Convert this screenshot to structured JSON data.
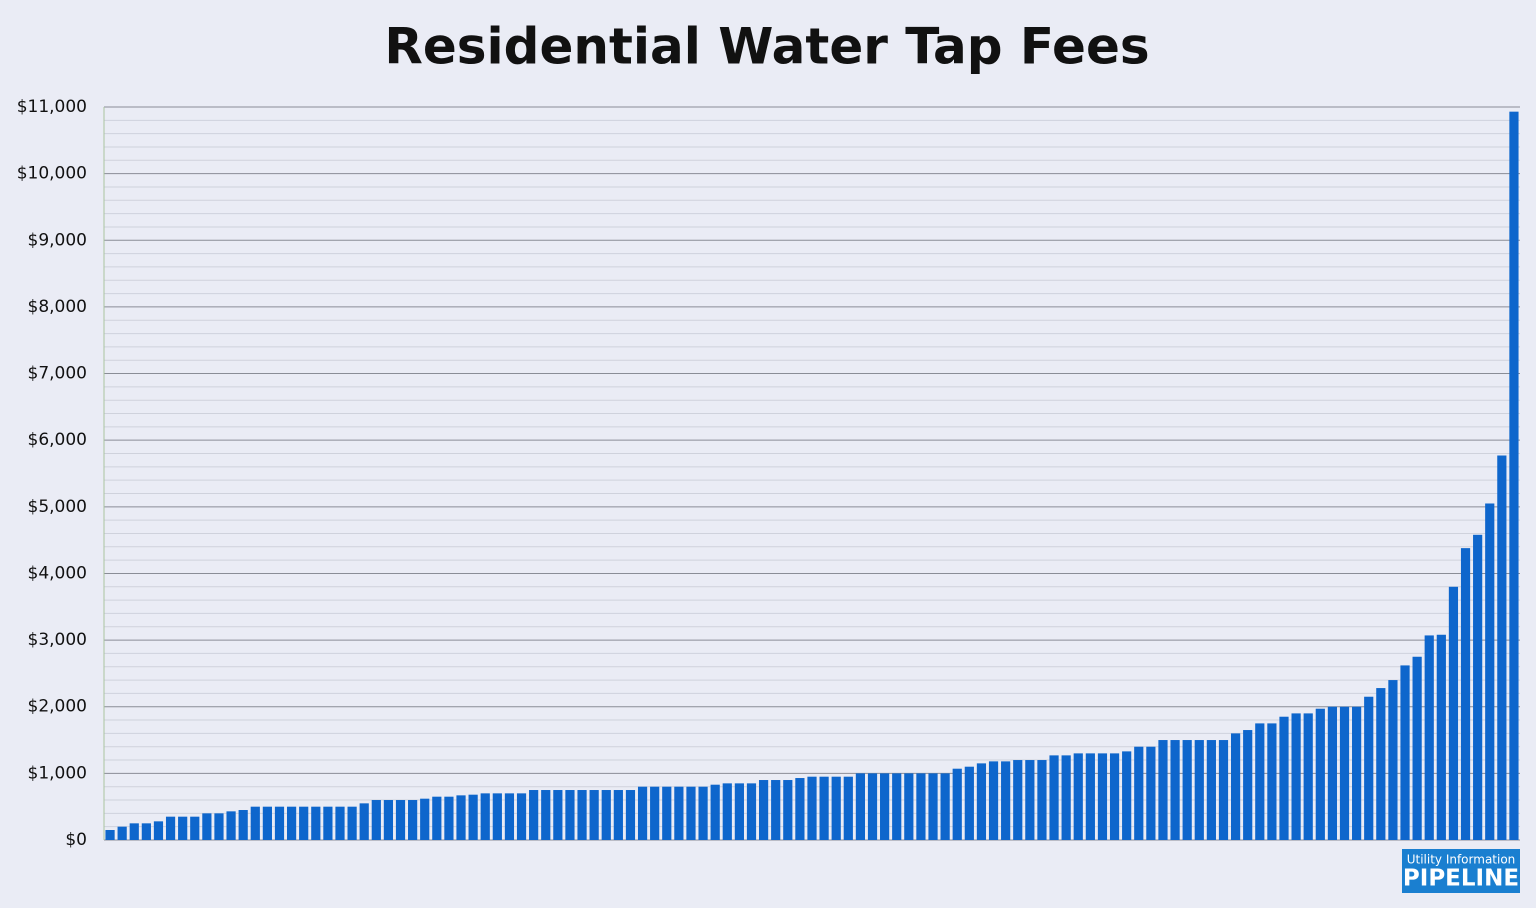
{
  "chart_data": {
    "type": "bar",
    "title": "Residential Water Tap Fees",
    "categories": [
      null,
      null,
      null,
      null,
      null,
      null,
      null,
      null,
      null,
      null,
      null,
      null,
      null,
      null,
      null,
      null,
      null,
      null,
      null,
      null,
      null,
      null,
      null,
      null,
      null,
      null,
      null,
      null,
      null,
      null,
      null,
      null,
      null,
      null,
      null,
      null,
      null,
      null,
      null,
      null,
      null,
      null,
      null,
      null,
      null,
      null,
      null,
      null,
      null,
      null,
      null,
      null,
      null,
      null,
      null,
      null,
      null,
      null,
      null,
      null,
      null,
      null,
      null,
      null,
      null,
      null,
      null,
      null,
      null,
      null,
      null,
      null,
      null,
      null,
      null,
      null,
      null,
      null,
      null,
      null,
      null,
      null,
      null,
      null,
      null,
      null,
      null,
      null,
      null,
      null,
      null,
      null,
      null,
      null,
      null,
      null,
      null,
      null,
      null,
      null,
      null,
      null,
      null,
      null,
      null,
      null,
      null,
      null,
      null,
      null,
      null,
      null,
      null,
      null,
      null,
      null,
      null
    ],
    "values": [
      150,
      200,
      250,
      250,
      280,
      350,
      350,
      350,
      400,
      400,
      430,
      450,
      500,
      500,
      500,
      500,
      500,
      500,
      500,
      500,
      500,
      550,
      600,
      600,
      600,
      600,
      620,
      650,
      650,
      670,
      680,
      700,
      700,
      700,
      700,
      750,
      750,
      750,
      750,
      750,
      750,
      750,
      750,
      750,
      800,
      800,
      800,
      800,
      800,
      800,
      830,
      850,
      850,
      850,
      900,
      900,
      900,
      930,
      950,
      950,
      950,
      950,
      1000,
      1000,
      1000,
      1000,
      1000,
      1000,
      1000,
      1000,
      1070,
      1100,
      1150,
      1180,
      1180,
      1200,
      1200,
      1200,
      1270,
      1270,
      1300,
      1300,
      1300,
      1300,
      1330,
      1400,
      1400,
      1500,
      1500,
      1500,
      1500,
      1500,
      1500,
      1600,
      1650,
      1750,
      1750,
      1850,
      1900,
      1900,
      1970,
      2000,
      2000,
      2000,
      2150,
      2280,
      2400,
      2620,
      2750,
      3070,
      3080,
      3800,
      4380,
      4580,
      5050,
      5770,
      10930
    ],
    "color": "#0e66cc",
    "ylim": [
      0,
      11000
    ],
    "yticks": [
      {
        "value": 0,
        "label": "$0"
      },
      {
        "value": 1000,
        "label": "$1,000"
      },
      {
        "value": 2000,
        "label": "$2,000"
      },
      {
        "value": 3000,
        "label": "$3,000"
      },
      {
        "value": 4000,
        "label": "$4,000"
      },
      {
        "value": 5000,
        "label": "$5,000"
      },
      {
        "value": 6000,
        "label": "$6,000"
      },
      {
        "value": 7000,
        "label": "$7,000"
      },
      {
        "value": 8000,
        "label": "$8,000"
      },
      {
        "value": 9000,
        "label": "$9,000"
      },
      {
        "value": 10000,
        "label": "$10,000"
      },
      {
        "value": 11000,
        "label": "$11,000"
      }
    ],
    "grid": true,
    "minor_grid_divisions": 5,
    "logo": {
      "line1": "Utility Information",
      "line2": "PIPELINE"
    }
  }
}
